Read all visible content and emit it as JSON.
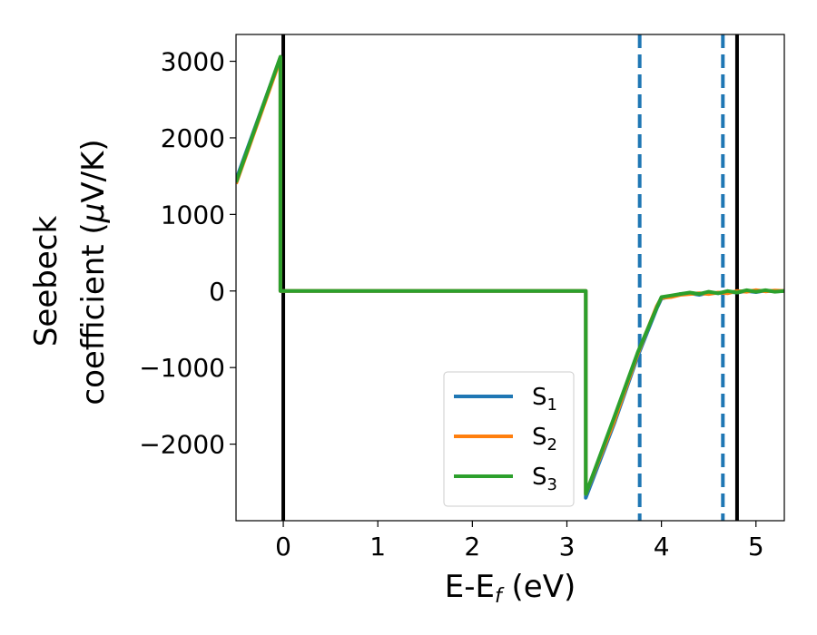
{
  "chart_data": {
    "type": "line",
    "xlabel": "E-E",
    "xlabel_sub": "f",
    "xlabel_unit": " (eV)",
    "ylabel_line1": "Seebeck",
    "ylabel_line2": "coefficient  (",
    "ylabel_mu": "μ",
    "ylabel_unit": "V/K)",
    "xlim": [
      -0.5,
      5.3
    ],
    "ylim": [
      -3000,
      3350
    ],
    "xticks": [
      0,
      1,
      2,
      3,
      4,
      5
    ],
    "xtick_labels": [
      "0",
      "1",
      "2",
      "3",
      "4",
      "5"
    ],
    "yticks": [
      3000,
      2000,
      1000,
      0,
      -1000,
      -2000
    ],
    "ytick_labels": [
      "3000",
      "2000",
      "1000",
      "0",
      "−1000",
      "−2000"
    ],
    "grid": false,
    "legend": "lower-center",
    "vlines": [
      {
        "x": 0.0,
        "style": "solid",
        "color": "#000000"
      },
      {
        "x": 4.8,
        "style": "solid",
        "color": "#000000"
      },
      {
        "x": 3.77,
        "style": "dashed",
        "color": "#1f77b4"
      },
      {
        "x": 4.65,
        "style": "dashed",
        "color": "#1f77b4"
      }
    ],
    "series": [
      {
        "name": "S",
        "sub": "1",
        "color": "#1f77b4",
        "x": [
          -0.5,
          -0.03,
          -0.03,
          3.2,
          3.2,
          3.5,
          3.75,
          3.95,
          4.0,
          4.1,
          4.2,
          4.3,
          4.4,
          4.5,
          4.6,
          4.7,
          4.8,
          4.9,
          5.0,
          5.1,
          5.2,
          5.3
        ],
        "y": [
          1450,
          3050,
          0,
          0,
          -2700,
          -1730,
          -850,
          -230,
          -100,
          -70,
          -40,
          -30,
          -50,
          -20,
          -30,
          -10,
          -20,
          0,
          -15,
          5,
          -5,
          0
        ]
      },
      {
        "name": "S",
        "sub": "2",
        "color": "#ff7f0e",
        "x": [
          -0.5,
          -0.03,
          -0.03,
          3.2,
          3.2,
          3.5,
          3.75,
          3.95,
          4.0,
          4.1,
          4.2,
          4.3,
          4.4,
          4.5,
          4.6,
          4.7,
          4.8,
          4.9,
          5.0,
          5.1,
          5.2,
          5.3
        ],
        "y": [
          1400,
          3030,
          0,
          0,
          -2650,
          -1700,
          -820,
          -200,
          -90,
          -80,
          -50,
          -40,
          -30,
          -40,
          -20,
          -30,
          0,
          -10,
          10,
          -5,
          5,
          0
        ]
      },
      {
        "name": "S",
        "sub": "3",
        "color": "#2ca02c",
        "x": [
          -0.5,
          -0.03,
          -0.03,
          3.2,
          3.2,
          3.5,
          3.75,
          3.95,
          4.0,
          4.1,
          4.2,
          4.3,
          4.4,
          4.5,
          4.6,
          4.7,
          4.8,
          4.9,
          5.0,
          5.1,
          5.2,
          5.3
        ],
        "y": [
          1420,
          3060,
          0,
          0,
          -2650,
          -1650,
          -800,
          -220,
          -80,
          -60,
          -40,
          -20,
          -40,
          -10,
          -30,
          0,
          -20,
          10,
          -10,
          10,
          -10,
          0
        ]
      }
    ]
  }
}
